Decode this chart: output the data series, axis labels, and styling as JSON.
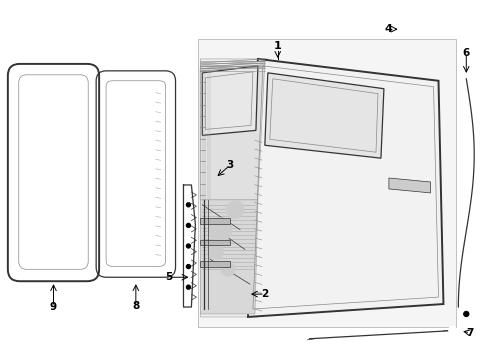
{
  "background_color": "#ffffff",
  "line_color": "#333333",
  "light_gray": "#e8e8e8",
  "mid_gray": "#cccccc",
  "dot_gray": "#d0d0d0",
  "figure_width": 4.9,
  "figure_height": 3.6,
  "dpi": 100,
  "label_fs": 7.5,
  "lw_thick": 1.4,
  "lw_med": 0.9,
  "lw_thin": 0.5
}
